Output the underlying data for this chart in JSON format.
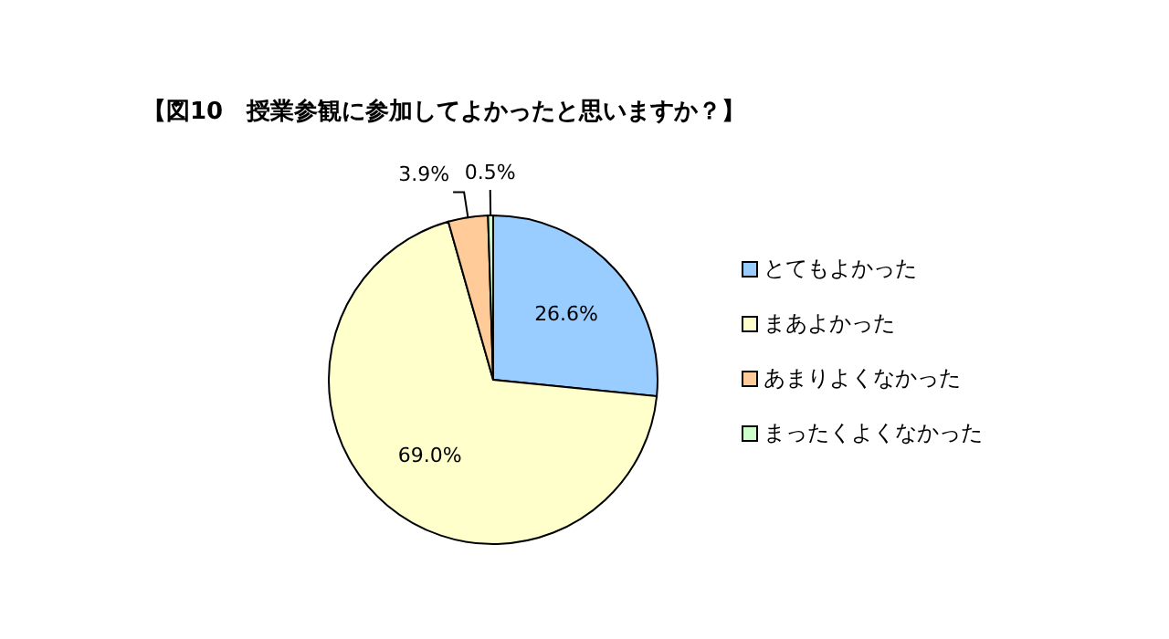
{
  "chart_data": {
    "type": "pie",
    "title": "【図10　授業参観に参加してよかったと思いますか？】",
    "categories": [
      "とてもよかった",
      "まあよかった",
      "あまりよくなかった",
      "まったくよくなかった"
    ],
    "values": [
      26.6,
      69.0,
      3.9,
      0.5
    ],
    "colors": [
      "#99ccff",
      "#ffffcc",
      "#ffcc99",
      "#ccffcc"
    ],
    "value_labels": [
      "26.6%",
      "69.0%",
      "3.9%",
      "0.5%"
    ],
    "legend": "right"
  }
}
